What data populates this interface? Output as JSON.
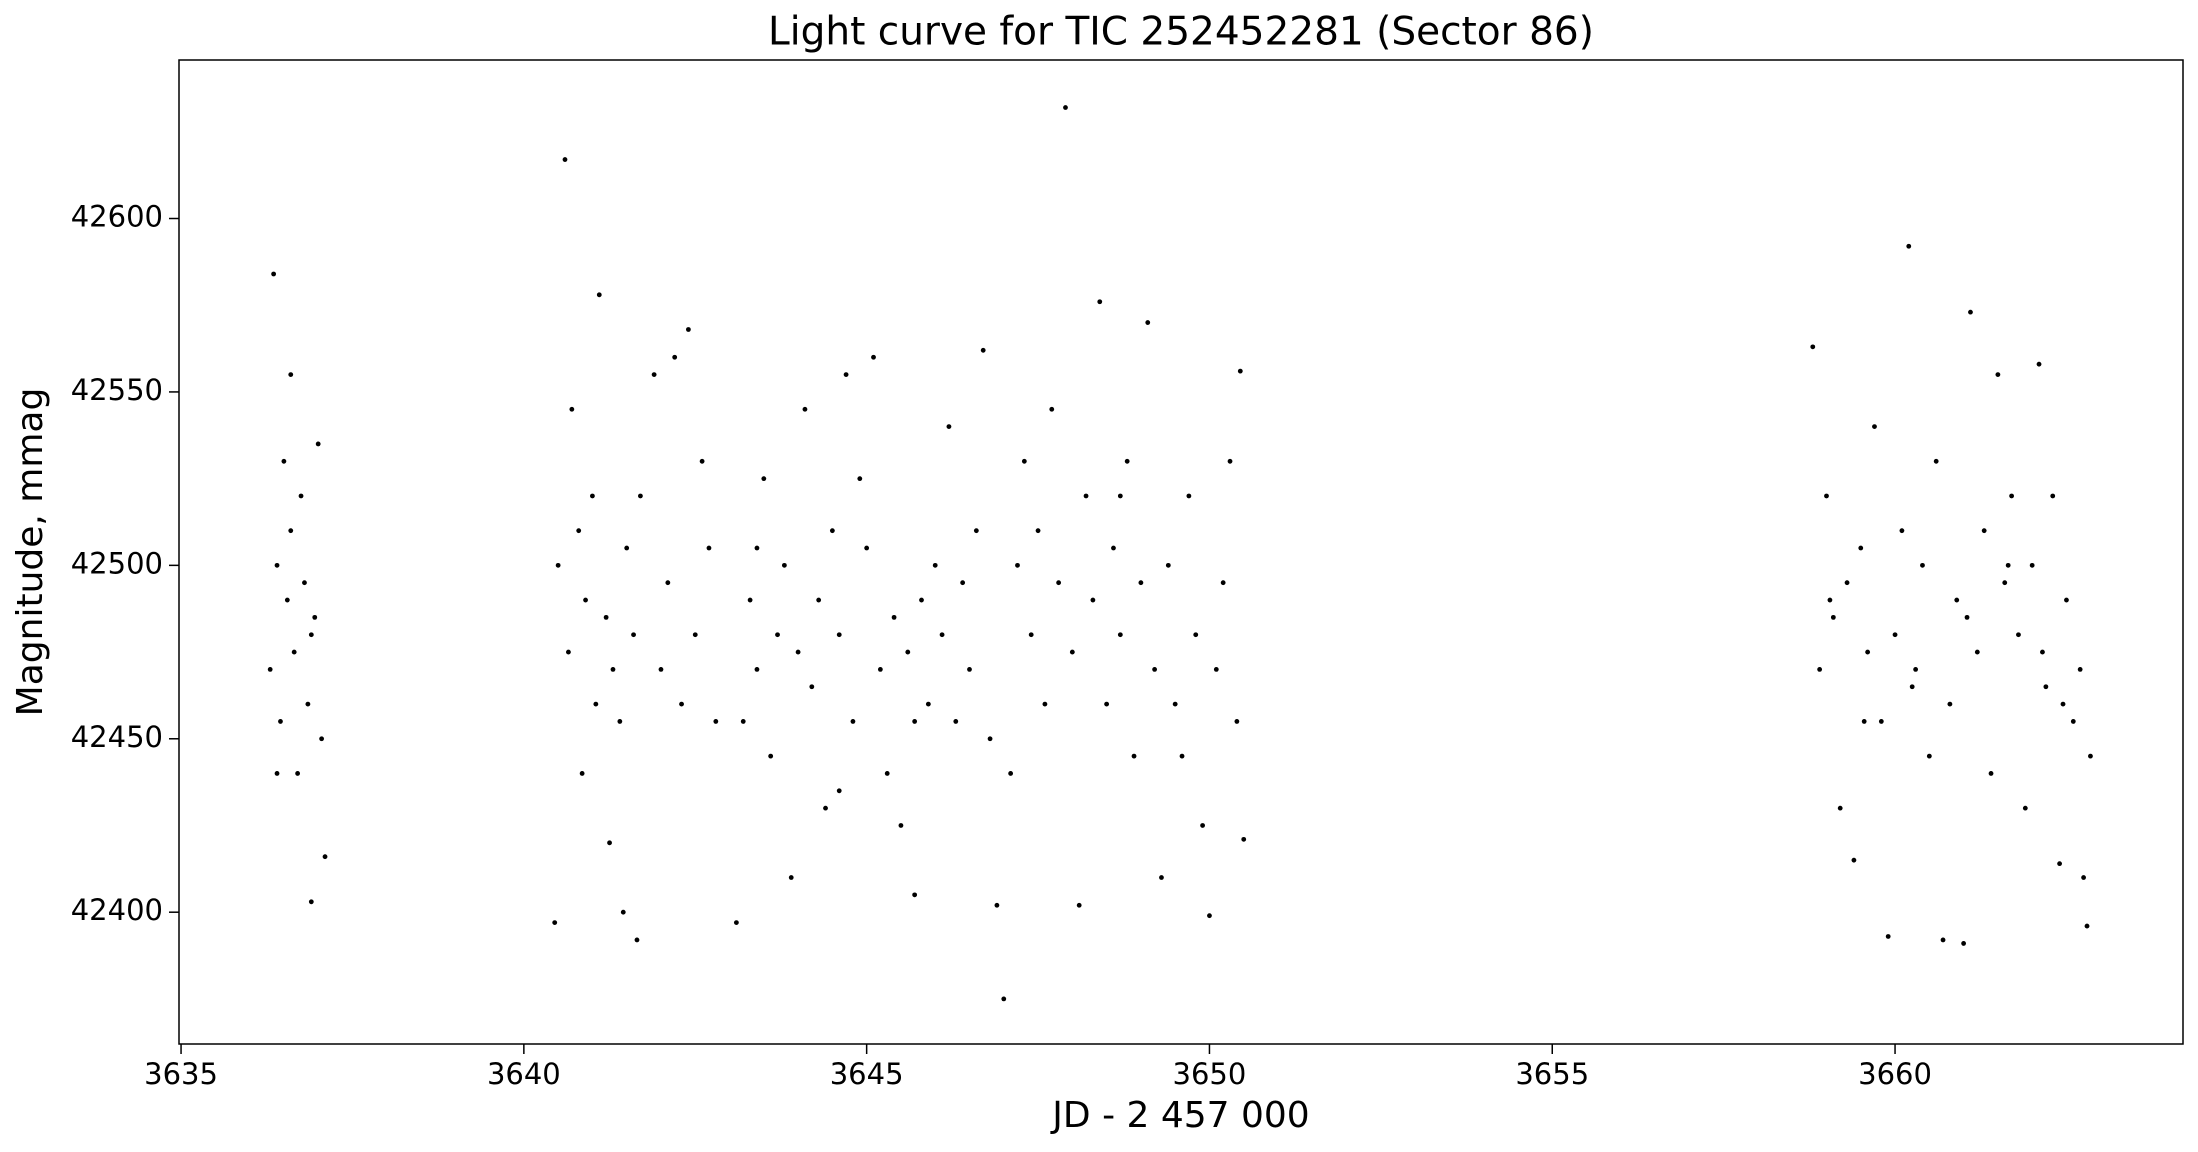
{
  "chart_data": {
    "type": "scatter",
    "title": "Light curve for TIC 252452281 (Sector 86)",
    "x_label": "JD - 2 457 000",
    "y_label": "Magnitude, mmag",
    "xlim": [
      3634.97,
      3664.2
    ],
    "ylim": [
      42362,
      42645.7
    ],
    "xticks": [
      3635,
      3640,
      3645,
      3650,
      3655,
      3660
    ],
    "yticks": [
      42400,
      42450,
      42500,
      42550,
      42600
    ],
    "grid": false,
    "x": [
      3636.3,
      3636.35,
      3636.4,
      3636.45,
      3636.5,
      3636.55,
      3636.6,
      3636.65,
      3636.7,
      3636.75,
      3636.8,
      3636.85,
      3636.9,
      3636.95,
      3637.0,
      3637.05,
      3637.1,
      3636.4,
      3636.6,
      3636.9,
      3640.45,
      3640.5,
      3640.6,
      3640.65,
      3640.7,
      3640.8,
      3640.85,
      3640.9,
      3641.0,
      3641.05,
      3641.1,
      3641.2,
      3641.25,
      3641.3,
      3641.4,
      3641.45,
      3641.5,
      3641.6,
      3641.65,
      3641.7,
      3641.9,
      3642.0,
      3642.1,
      3642.2,
      3642.3,
      3642.4,
      3642.5,
      3642.6,
      3642.7,
      3642.8,
      3643.1,
      3643.2,
      3643.3,
      3643.4,
      3643.5,
      3643.6,
      3643.7,
      3643.8,
      3643.9,
      3644.0,
      3644.1,
      3644.2,
      3644.3,
      3644.4,
      3644.5,
      3644.6,
      3644.7,
      3644.8,
      3644.9,
      3645.0,
      3645.1,
      3645.2,
      3645.3,
      3645.4,
      3645.5,
      3645.6,
      3645.7,
      3645.8,
      3645.9,
      3646.0,
      3646.1,
      3646.2,
      3646.3,
      3646.4,
      3646.5,
      3646.6,
      3646.7,
      3646.8,
      3646.9,
      3647.0,
      3647.1,
      3647.2,
      3647.3,
      3647.4,
      3647.5,
      3647.6,
      3647.7,
      3647.8,
      3647.9,
      3648.0,
      3648.1,
      3648.2,
      3648.3,
      3648.4,
      3648.5,
      3648.6,
      3648.7,
      3648.8,
      3648.9,
      3649.0,
      3649.1,
      3649.2,
      3649.3,
      3649.4,
      3649.5,
      3649.6,
      3649.7,
      3649.8,
      3649.9,
      3650.0,
      3650.1,
      3650.2,
      3650.3,
      3650.4,
      3650.45,
      3650.5,
      3643.4,
      3644.6,
      3645.7,
      3648.7,
      3658.8,
      3658.9,
      3659.0,
      3659.1,
      3659.2,
      3659.3,
      3659.4,
      3659.5,
      3659.6,
      3659.7,
      3659.8,
      3659.9,
      3660.0,
      3660.1,
      3660.2,
      3660.3,
      3660.4,
      3660.5,
      3660.6,
      3660.7,
      3660.8,
      3660.9,
      3661.0,
      3661.1,
      3661.2,
      3661.3,
      3661.4,
      3661.5,
      3661.6,
      3661.7,
      3661.8,
      3661.9,
      3662.0,
      3662.1,
      3662.2,
      3662.3,
      3662.4,
      3662.5,
      3662.6,
      3662.7,
      3662.8,
      3662.85,
      3659.05,
      3659.55,
      3660.25,
      3661.05,
      3661.65,
      3662.15,
      3662.45,
      3662.75
    ],
    "series": [
      {
        "name": "magnitude",
        "color": "#000000",
        "values": [
          42470,
          42584,
          42500,
          42455,
          42530,
          42490,
          42510,
          42475,
          42440,
          42520,
          42495,
          42460,
          42403,
          42485,
          42535,
          42450,
          42416,
          42440,
          42555,
          42480,
          42397,
          42500,
          42617,
          42475,
          42545,
          42510,
          42440,
          42490,
          42520,
          42460,
          42578,
          42485,
          42420,
          42470,
          42455,
          42400,
          42505,
          42480,
          42392,
          42520,
          42555,
          42470,
          42495,
          42560,
          42460,
          42568,
          42480,
          42530,
          42505,
          42455,
          42397,
          42455,
          42490,
          42470,
          42525,
          42445,
          42480,
          42500,
          42410,
          42475,
          42545,
          42465,
          42490,
          42430,
          42510,
          42480,
          42555,
          42455,
          42525,
          42505,
          42560,
          42470,
          42440,
          42485,
          42425,
          42475,
          42405,
          42490,
          42460,
          42500,
          42480,
          42540,
          42455,
          42495,
          42470,
          42510,
          42562,
          42450,
          42402,
          42375,
          42440,
          42500,
          42530,
          42480,
          42510,
          42460,
          42545,
          42495,
          42632,
          42475,
          42402,
          42520,
          42490,
          42576,
          42460,
          42505,
          42480,
          42530,
          42445,
          42495,
          42570,
          42470,
          42410,
          42500,
          42460,
          42445,
          42520,
          42480,
          42425,
          42399,
          42470,
          42495,
          42530,
          42455,
          42556,
          42421,
          42505,
          42435,
          42455,
          42520,
          42563,
          42470,
          42520,
          42485,
          42430,
          42495,
          42415,
          42505,
          42475,
          42540,
          42455,
          42393,
          42480,
          42510,
          42592,
          42470,
          42500,
          42445,
          42530,
          42392,
          42460,
          42490,
          42391,
          42573,
          42475,
          42510,
          42440,
          42555,
          42495,
          42520,
          42480,
          42430,
          42500,
          42558,
          42465,
          42520,
          42414,
          42490,
          42455,
          42470,
          42396,
          42445,
          42490,
          42455,
          42465,
          42485,
          42500,
          42475,
          42460,
          42410
        ]
      }
    ]
  }
}
